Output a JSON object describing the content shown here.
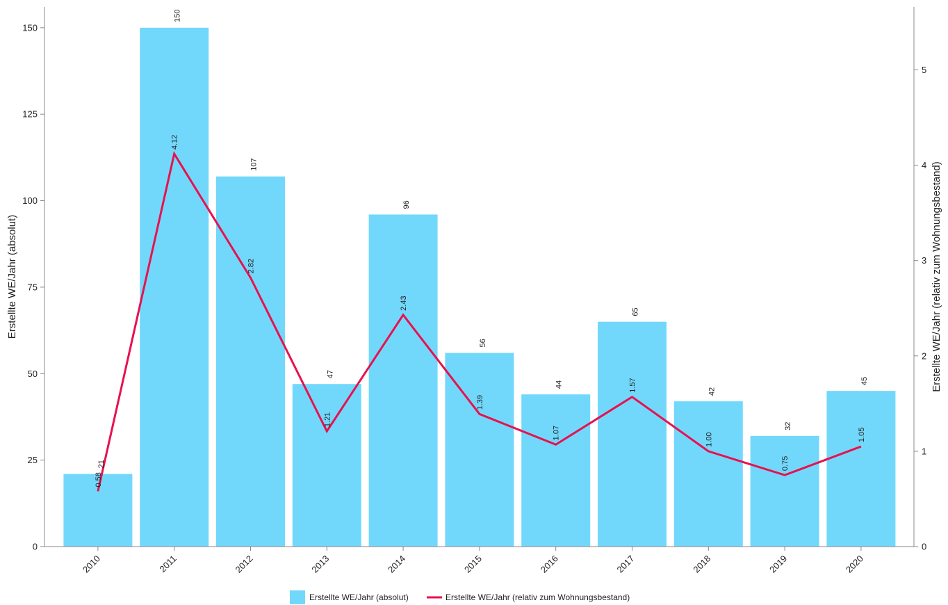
{
  "chart_data": {
    "type": "bar",
    "categories": [
      "2010",
      "2011",
      "2012",
      "2013",
      "2014",
      "2015",
      "2016",
      "2017",
      "2018",
      "2019",
      "2020"
    ],
    "series": [
      {
        "name": "Erstellte WE/Jahr (absolut)",
        "type": "bar",
        "axis": "left",
        "color": "#72d8fb",
        "values": [
          21,
          150,
          107,
          47,
          96,
          56,
          44,
          65,
          42,
          32,
          45
        ],
        "labels": [
          "21",
          "150",
          "107",
          "47",
          "96",
          "56",
          "44",
          "65",
          "42",
          "32",
          "45"
        ]
      },
      {
        "name": "Erstellte WE/Jahr (relativ zum Wohnungsbestand)",
        "type": "line",
        "axis": "right",
        "color": "#e8114f",
        "values": [
          0.58,
          4.12,
          2.82,
          1.21,
          2.43,
          1.39,
          1.07,
          1.57,
          1.0,
          0.75,
          1.05
        ],
        "labels": [
          "0.58",
          "4.12",
          "2.82",
          "1.21",
          "2.43",
          "1.39",
          "1.07",
          "1.57",
          "1.00",
          "0.75",
          "1.05"
        ]
      }
    ],
    "ylabel": "Erstellte WE/Jahr (absolut)",
    "y2label": "Erstellte WE/Jahr (relativ zum Wohnungsbestand)",
    "ylim": [
      0,
      156
    ],
    "y2lim": [
      0,
      5.66
    ],
    "yticks": [
      "0",
      "25",
      "50",
      "75",
      "100",
      "125",
      "150"
    ],
    "y2ticks": [
      "0",
      "1",
      "2",
      "3",
      "4",
      "5"
    ],
    "grid": false,
    "legend_position": "bottom-center"
  }
}
